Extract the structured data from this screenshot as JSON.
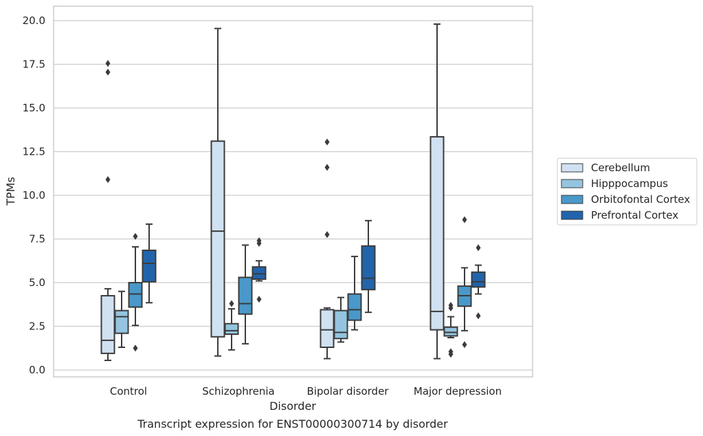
{
  "chart_data": {
    "type": "box",
    "title": "Transcript expression for ENST00000300714 by disorder",
    "xlabel": "Disorder",
    "ylabel": "TPMs",
    "ylim": [
      -0.3,
      20.7
    ],
    "yticks": [
      0.0,
      2.5,
      5.0,
      7.5,
      10.0,
      12.5,
      15.0,
      17.5,
      20.0
    ],
    "ytick_labels": [
      "0.0",
      "2.5",
      "5.0",
      "7.5",
      "10.0",
      "12.5",
      "15.0",
      "17.5",
      "20.0"
    ],
    "grid": "horizontal",
    "legend_position": "right",
    "categories": [
      "Control",
      "Schizophrenia",
      "Bipolar disorder",
      "Major depression"
    ],
    "series": [
      {
        "name": "Cerebellum",
        "color": "#d0e1f2",
        "boxes": [
          {
            "whislo": 0.55,
            "q1": 0.95,
            "med": 1.7,
            "q3": 4.25,
            "whishi": 4.65,
            "fliers": [
              10.9,
              17.05,
              17.55
            ]
          },
          {
            "whislo": 0.8,
            "q1": 1.9,
            "med": 7.95,
            "q3": 13.1,
            "whishi": 19.55,
            "fliers": []
          },
          {
            "whislo": 0.65,
            "q1": 1.3,
            "med": 2.3,
            "q3": 3.45,
            "whishi": 3.55,
            "fliers": [
              7.75,
              11.6,
              13.05
            ]
          },
          {
            "whislo": 0.65,
            "q1": 2.3,
            "med": 3.35,
            "q3": 13.35,
            "whishi": 19.8,
            "fliers": []
          }
        ]
      },
      {
        "name": "Hipppocampus",
        "color": "#94c4df",
        "boxes": [
          {
            "whislo": 1.3,
            "q1": 2.1,
            "med": 3.05,
            "q3": 3.4,
            "whishi": 4.5,
            "fliers": []
          },
          {
            "whislo": 1.15,
            "q1": 2.05,
            "med": 2.25,
            "q3": 2.65,
            "whishi": 3.5,
            "fliers": [
              3.8
            ]
          },
          {
            "whislo": 1.6,
            "q1": 1.8,
            "med": 2.15,
            "q3": 3.4,
            "whishi": 4.15,
            "fliers": []
          },
          {
            "whislo": 1.85,
            "q1": 1.95,
            "med": 2.15,
            "q3": 2.45,
            "whishi": 3.05,
            "fliers": [
              0.9,
              1.05,
              3.55,
              3.7
            ]
          }
        ]
      },
      {
        "name": "Orbitofontal Cortex",
        "color": "#4a98c9",
        "boxes": [
          {
            "whislo": 2.55,
            "q1": 3.6,
            "med": 4.35,
            "q3": 5.0,
            "whishi": 7.05,
            "fliers": [
              1.25,
              7.65
            ]
          },
          {
            "whislo": 1.5,
            "q1": 3.2,
            "med": 3.8,
            "q3": 5.3,
            "whishi": 7.15,
            "fliers": []
          },
          {
            "whislo": 2.3,
            "q1": 2.85,
            "med": 3.45,
            "q3": 4.35,
            "whishi": 6.5,
            "fliers": []
          },
          {
            "whislo": 2.25,
            "q1": 3.65,
            "med": 4.25,
            "q3": 4.8,
            "whishi": 5.85,
            "fliers": [
              1.45,
              8.6
            ]
          }
        ]
      },
      {
        "name": "Prefrontal Cortex",
        "color": "#2164ab",
        "boxes": [
          {
            "whislo": 3.85,
            "q1": 5.05,
            "med": 6.1,
            "q3": 6.85,
            "whishi": 8.35,
            "fliers": []
          },
          {
            "whislo": 5.1,
            "q1": 5.2,
            "med": 5.5,
            "q3": 5.9,
            "whishi": 6.25,
            "fliers": [
              4.05,
              7.25,
              7.4
            ]
          },
          {
            "whislo": 3.3,
            "q1": 4.6,
            "med": 5.25,
            "q3": 7.1,
            "whishi": 8.55,
            "fliers": []
          },
          {
            "whislo": 4.35,
            "q1": 4.75,
            "med": 5.05,
            "q3": 5.6,
            "whishi": 6.0,
            "fliers": [
              3.1,
              7.0
            ]
          }
        ]
      }
    ]
  }
}
